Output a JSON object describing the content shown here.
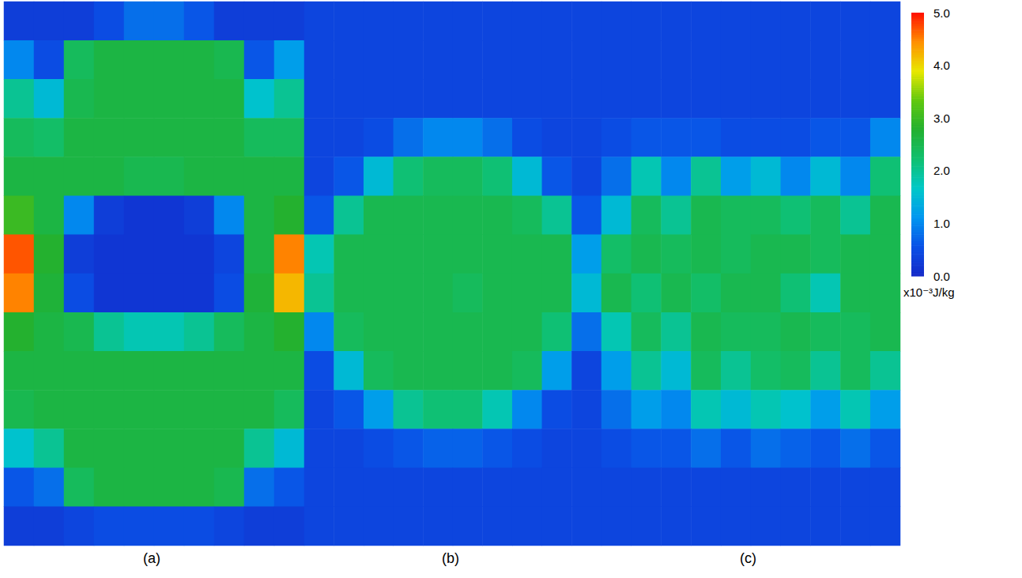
{
  "chart_data": {
    "type": "heatmap",
    "tick_labels": false,
    "colorbar": {
      "range": [
        0,
        5
      ],
      "ticks": [
        {
          "value": 0,
          "label": "0.0"
        },
        {
          "value": 1,
          "label": "1.0"
        },
        {
          "value": 2,
          "label": "2.0"
        },
        {
          "value": 3,
          "label": "3.0"
        },
        {
          "value": 4,
          "label": "4.0"
        },
        {
          "value": 5,
          "label": "5.0"
        }
      ],
      "label": "x10⁻³J/kg"
    },
    "panels": [
      {
        "title": "(a)",
        "cells": [
          [
            0.3,
            0.3,
            0.3,
            0.5,
            0.8,
            0.8,
            0.6,
            0.3,
            0.3,
            0.3
          ],
          [
            1.0,
            0.5,
            2.4,
            2.6,
            2.6,
            2.6,
            2.6,
            2.5,
            0.6,
            1.2
          ],
          [
            2.0,
            1.5,
            2.5,
            2.6,
            2.6,
            2.6,
            2.6,
            2.6,
            1.6,
            2.0
          ],
          [
            2.4,
            2.3,
            2.6,
            2.6,
            2.6,
            2.6,
            2.6,
            2.6,
            2.4,
            2.4
          ],
          [
            2.6,
            2.6,
            2.6,
            2.6,
            2.5,
            2.5,
            2.6,
            2.6,
            2.6,
            2.6
          ],
          [
            3.0,
            2.6,
            1.0,
            0.3,
            0.2,
            0.2,
            0.3,
            1.0,
            2.6,
            2.8
          ],
          [
            4.7,
            2.8,
            0.3,
            0.2,
            0.2,
            0.2,
            0.2,
            0.4,
            2.6,
            4.5
          ],
          [
            4.5,
            2.7,
            0.5,
            0.2,
            0.2,
            0.2,
            0.2,
            0.5,
            2.7,
            4.2
          ],
          [
            2.8,
            2.6,
            2.5,
            2.0,
            1.8,
            1.8,
            2.0,
            2.4,
            2.6,
            2.8
          ],
          [
            2.6,
            2.6,
            2.6,
            2.6,
            2.6,
            2.6,
            2.6,
            2.6,
            2.6,
            2.6
          ],
          [
            2.5,
            2.6,
            2.6,
            2.6,
            2.6,
            2.6,
            2.6,
            2.6,
            2.6,
            2.4
          ],
          [
            1.6,
            2.0,
            2.6,
            2.6,
            2.6,
            2.6,
            2.6,
            2.6,
            2.0,
            1.5
          ],
          [
            0.6,
            0.8,
            2.4,
            2.6,
            2.6,
            2.6,
            2.6,
            2.5,
            0.8,
            0.6
          ],
          [
            0.3,
            0.3,
            0.4,
            0.5,
            0.5,
            0.5,
            0.5,
            0.4,
            0.3,
            0.3
          ]
        ]
      },
      {
        "title": "(b)",
        "cells": [
          [
            0.4,
            0.4,
            0.4,
            0.4,
            0.4,
            0.4,
            0.4,
            0.4,
            0.4,
            0.4
          ],
          [
            0.4,
            0.4,
            0.4,
            0.4,
            0.4,
            0.4,
            0.4,
            0.4,
            0.4,
            0.4
          ],
          [
            0.4,
            0.4,
            0.4,
            0.4,
            0.4,
            0.4,
            0.4,
            0.4,
            0.4,
            0.4
          ],
          [
            0.4,
            0.4,
            0.5,
            0.8,
            1.0,
            1.0,
            0.8,
            0.5,
            0.4,
            0.4
          ],
          [
            0.4,
            0.6,
            1.5,
            2.2,
            2.4,
            2.4,
            2.2,
            1.5,
            0.6,
            0.4
          ],
          [
            0.6,
            2.0,
            2.5,
            2.5,
            2.5,
            2.5,
            2.5,
            2.4,
            2.0,
            0.6
          ],
          [
            1.8,
            2.5,
            2.5,
            2.5,
            2.5,
            2.5,
            2.5,
            2.5,
            2.5,
            1.2
          ],
          [
            2.0,
            2.5,
            2.5,
            2.5,
            2.5,
            2.4,
            2.5,
            2.5,
            2.5,
            1.5
          ],
          [
            1.0,
            2.4,
            2.5,
            2.5,
            2.5,
            2.5,
            2.5,
            2.5,
            2.2,
            0.8
          ],
          [
            0.5,
            1.5,
            2.4,
            2.5,
            2.5,
            2.5,
            2.5,
            2.4,
            1.2,
            0.4
          ],
          [
            0.4,
            0.6,
            1.2,
            2.0,
            2.2,
            2.2,
            1.8,
            1.0,
            0.5,
            0.4
          ],
          [
            0.4,
            0.4,
            0.5,
            0.6,
            0.7,
            0.7,
            0.6,
            0.5,
            0.4,
            0.4
          ],
          [
            0.4,
            0.4,
            0.4,
            0.4,
            0.4,
            0.4,
            0.4,
            0.4,
            0.4,
            0.4
          ],
          [
            0.4,
            0.4,
            0.4,
            0.4,
            0.4,
            0.4,
            0.4,
            0.4,
            0.4,
            0.4
          ]
        ]
      },
      {
        "title": "(c)",
        "cells": [
          [
            0.4,
            0.4,
            0.4,
            0.4,
            0.4,
            0.4,
            0.4,
            0.4,
            0.4,
            0.4
          ],
          [
            0.4,
            0.4,
            0.4,
            0.4,
            0.4,
            0.4,
            0.4,
            0.4,
            0.4,
            0.4
          ],
          [
            0.4,
            0.4,
            0.4,
            0.4,
            0.4,
            0.4,
            0.4,
            0.4,
            0.4,
            0.4
          ],
          [
            0.5,
            0.6,
            0.6,
            0.6,
            0.5,
            0.5,
            0.5,
            0.6,
            0.6,
            1.0
          ],
          [
            0.8,
            1.8,
            1.0,
            2.0,
            1.2,
            1.5,
            1.0,
            1.5,
            1.0,
            2.2
          ],
          [
            1.5,
            2.4,
            2.0,
            2.5,
            2.4,
            2.4,
            2.2,
            2.4,
            2.0,
            2.5
          ],
          [
            2.3,
            2.5,
            2.4,
            2.5,
            2.4,
            2.5,
            2.5,
            2.4,
            2.5,
            2.5
          ],
          [
            2.5,
            2.2,
            2.5,
            2.3,
            2.5,
            2.5,
            2.2,
            1.8,
            2.5,
            2.5
          ],
          [
            1.8,
            2.4,
            2.0,
            2.5,
            2.4,
            2.4,
            2.5,
            2.4,
            2.4,
            2.5
          ],
          [
            1.2,
            2.0,
            1.5,
            2.4,
            2.0,
            2.3,
            2.4,
            2.0,
            2.4,
            2.0
          ],
          [
            0.8,
            1.2,
            1.0,
            1.8,
            1.5,
            1.8,
            1.6,
            1.2,
            1.8,
            1.2
          ],
          [
            0.5,
            0.6,
            0.6,
            0.8,
            0.6,
            0.8,
            0.7,
            0.6,
            0.8,
            0.6
          ],
          [
            0.4,
            0.4,
            0.4,
            0.4,
            0.4,
            0.4,
            0.4,
            0.4,
            0.4,
            0.4
          ],
          [
            0.4,
            0.4,
            0.4,
            0.4,
            0.4,
            0.4,
            0.4,
            0.4,
            0.4,
            0.4
          ]
        ]
      }
    ]
  }
}
